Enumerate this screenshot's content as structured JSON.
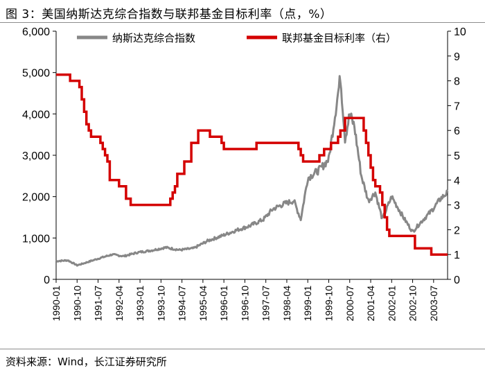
{
  "figure": {
    "title": "图 3：美国纳斯达克综合指数与联邦基金目标利率（点，%）",
    "source": "资料来源：Wind，长江证券研究所"
  },
  "chart_data": {
    "type": "line",
    "x_ticks": [
      "1990-01",
      "1990-10",
      "1991-07",
      "1992-04",
      "1993-01",
      "1993-10",
      "1994-07",
      "1995-04",
      "1996-01",
      "1996-10",
      "1997-07",
      "1998-04",
      "1999-01",
      "1999-10",
      "2000-07",
      "2001-04",
      "2002-01",
      "2002-10",
      "2003-07"
    ],
    "x_range": [
      "1990-01",
      "2004-01"
    ],
    "left_axis": {
      "ylim": [
        0,
        6000
      ],
      "ticks": [
        "0",
        "1,000",
        "2,000",
        "3,000",
        "4,000",
        "5,000",
        "6,000"
      ]
    },
    "right_axis": {
      "ylim": [
        0,
        10
      ],
      "ticks": [
        "0",
        "1",
        "2",
        "3",
        "4",
        "5",
        "6",
        "7",
        "8",
        "9",
        "10"
      ]
    },
    "legend_placement": "top",
    "series": [
      {
        "name": "纳斯达克综合指数",
        "axis": "left",
        "color": "#878787",
        "points": [
          [
            "1990-01",
            440
          ],
          [
            "1990-06",
            460
          ],
          [
            "1990-10",
            340
          ],
          [
            "1991-01",
            390
          ],
          [
            "1991-07",
            500
          ],
          [
            "1992-01",
            600
          ],
          [
            "1992-06",
            560
          ],
          [
            "1992-12",
            650
          ],
          [
            "1993-06",
            700
          ],
          [
            "1993-12",
            770
          ],
          [
            "1994-06",
            710
          ],
          [
            "1994-12",
            750
          ],
          [
            "1995-06",
            930
          ],
          [
            "1995-12",
            1050
          ],
          [
            "1996-06",
            1180
          ],
          [
            "1996-12",
            1290
          ],
          [
            "1997-06",
            1450
          ],
          [
            "1997-10",
            1700
          ],
          [
            "1998-03",
            1830
          ],
          [
            "1998-07",
            1900
          ],
          [
            "1998-10",
            1450
          ],
          [
            "1999-01",
            2450
          ],
          [
            "1999-06",
            2650
          ],
          [
            "1999-10",
            2900
          ],
          [
            "2000-01",
            4100
          ],
          [
            "2000-03",
            4900
          ],
          [
            "2000-05",
            3400
          ],
          [
            "2000-07",
            4000
          ],
          [
            "2000-09",
            3700
          ],
          [
            "2000-12",
            2500
          ],
          [
            "2001-03",
            1900
          ],
          [
            "2001-06",
            2100
          ],
          [
            "2001-09",
            1450
          ],
          [
            "2002-01",
            2000
          ],
          [
            "2002-06",
            1500
          ],
          [
            "2002-10",
            1150
          ],
          [
            "2003-01",
            1350
          ],
          [
            "2003-06",
            1650
          ],
          [
            "2003-10",
            1950
          ],
          [
            "2004-01",
            2100
          ]
        ]
      },
      {
        "name": "联邦基金目标利率（右）",
        "axis": "right",
        "color": "#d40000",
        "points": [
          [
            "1990-01",
            8.25
          ],
          [
            "1990-07",
            8.0
          ],
          [
            "1990-10",
            8.0
          ],
          [
            "1990-11",
            7.75
          ],
          [
            "1990-12",
            7.25
          ],
          [
            "1991-01",
            6.75
          ],
          [
            "1991-02",
            6.25
          ],
          [
            "1991-03",
            6.0
          ],
          [
            "1991-04",
            5.75
          ],
          [
            "1991-08",
            5.5
          ],
          [
            "1991-09",
            5.25
          ],
          [
            "1991-10",
            5.0
          ],
          [
            "1991-11",
            4.75
          ],
          [
            "1991-12",
            4.0
          ],
          [
            "1992-04",
            3.75
          ],
          [
            "1992-07",
            3.25
          ],
          [
            "1992-09",
            3.0
          ],
          [
            "1994-02",
            3.25
          ],
          [
            "1994-03",
            3.5
          ],
          [
            "1994-04",
            3.75
          ],
          [
            "1994-05",
            4.25
          ],
          [
            "1994-08",
            4.75
          ],
          [
            "1994-11",
            5.5
          ],
          [
            "1995-02",
            6.0
          ],
          [
            "1995-07",
            5.75
          ],
          [
            "1995-12",
            5.5
          ],
          [
            "1996-01",
            5.25
          ],
          [
            "1997-03",
            5.5
          ],
          [
            "1998-09",
            5.25
          ],
          [
            "1998-10",
            5.0
          ],
          [
            "1998-11",
            4.75
          ],
          [
            "1999-06",
            5.0
          ],
          [
            "1999-08",
            5.25
          ],
          [
            "1999-11",
            5.5
          ],
          [
            "2000-02",
            5.75
          ],
          [
            "2000-03",
            6.0
          ],
          [
            "2000-05",
            6.5
          ],
          [
            "2001-01",
            6.0
          ],
          [
            "2001-02",
            5.5
          ],
          [
            "2001-03",
            5.0
          ],
          [
            "2001-04",
            4.5
          ],
          [
            "2001-05",
            4.0
          ],
          [
            "2001-06",
            3.75
          ],
          [
            "2001-08",
            3.5
          ],
          [
            "2001-09",
            3.0
          ],
          [
            "2001-10",
            2.5
          ],
          [
            "2001-11",
            2.0
          ],
          [
            "2001-12",
            1.75
          ],
          [
            "2002-11",
            1.25
          ],
          [
            "2003-06",
            1.0
          ],
          [
            "2004-01",
            1.0
          ]
        ]
      }
    ]
  }
}
